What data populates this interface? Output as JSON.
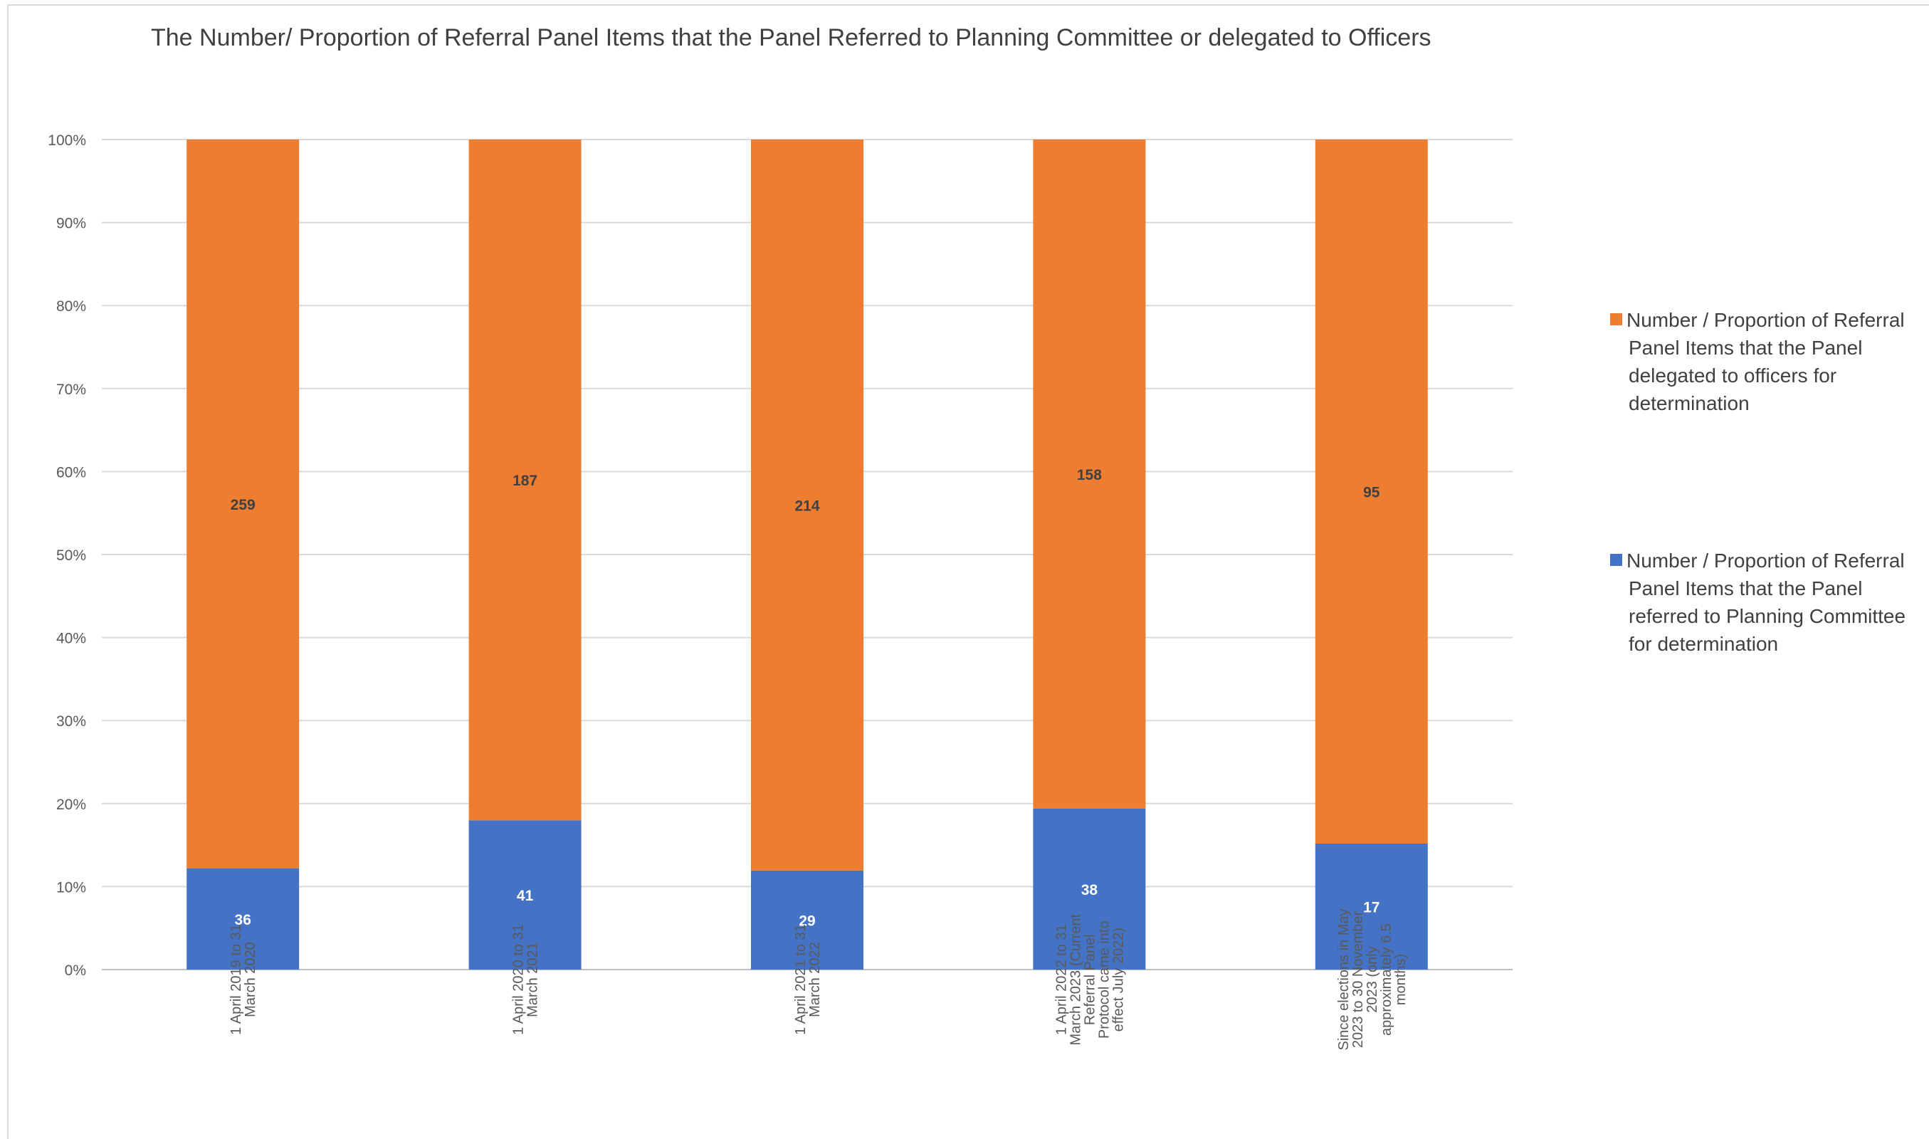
{
  "chart_data": {
    "type": "bar",
    "stacked": "percent",
    "title": "The Number/ Proportion of Referral Panel Items that the Panel Referred to Planning Committee or delegated to Officers",
    "categories": [
      [
        "1 April 2019 to 31",
        "March 2020"
      ],
      [
        "1 April 2020 to 31",
        "March 2021"
      ],
      [
        "1 April 2021 to 31",
        "March 2022"
      ],
      [
        "1 April 2022 to 31",
        "March 2023 (Current",
        "Referral Panel",
        "Protocol came into",
        "effect July 2022)"
      ],
      [
        "Since elections in May",
        "2023 to 30 November",
        "2023 (only",
        "approximately 6.5",
        "months)"
      ]
    ],
    "series": [
      {
        "name": "Number / Proportion of Referral Panel Items that the Panel referred to Planning Committee for determination",
        "color": "#4472c4",
        "label_color": "#ffffff",
        "values": [
          36,
          41,
          29,
          38,
          17
        ]
      },
      {
        "name": "Number / Proportion of Referral Panel Items that the Panel delegated to officers for determination",
        "color": "#ed7d31",
        "label_color": "#404040",
        "values": [
          259,
          187,
          214,
          158,
          95
        ]
      }
    ],
    "y_ticks": [
      "0%",
      "10%",
      "20%",
      "30%",
      "40%",
      "50%",
      "60%",
      "70%",
      "80%",
      "90%",
      "100%"
    ],
    "ylim": [
      0,
      100
    ],
    "grid": true,
    "legend_position": "right"
  },
  "legend": {
    "items": [
      {
        "label": "Number / Proportion of Referral Panel Items that the Panel delegated to officers for determination",
        "color": "#ed7d31"
      },
      {
        "label": "Number / Proportion of Referral Panel Items that the Panel referred to Planning Committee for determination",
        "color": "#4472c4"
      }
    ]
  }
}
